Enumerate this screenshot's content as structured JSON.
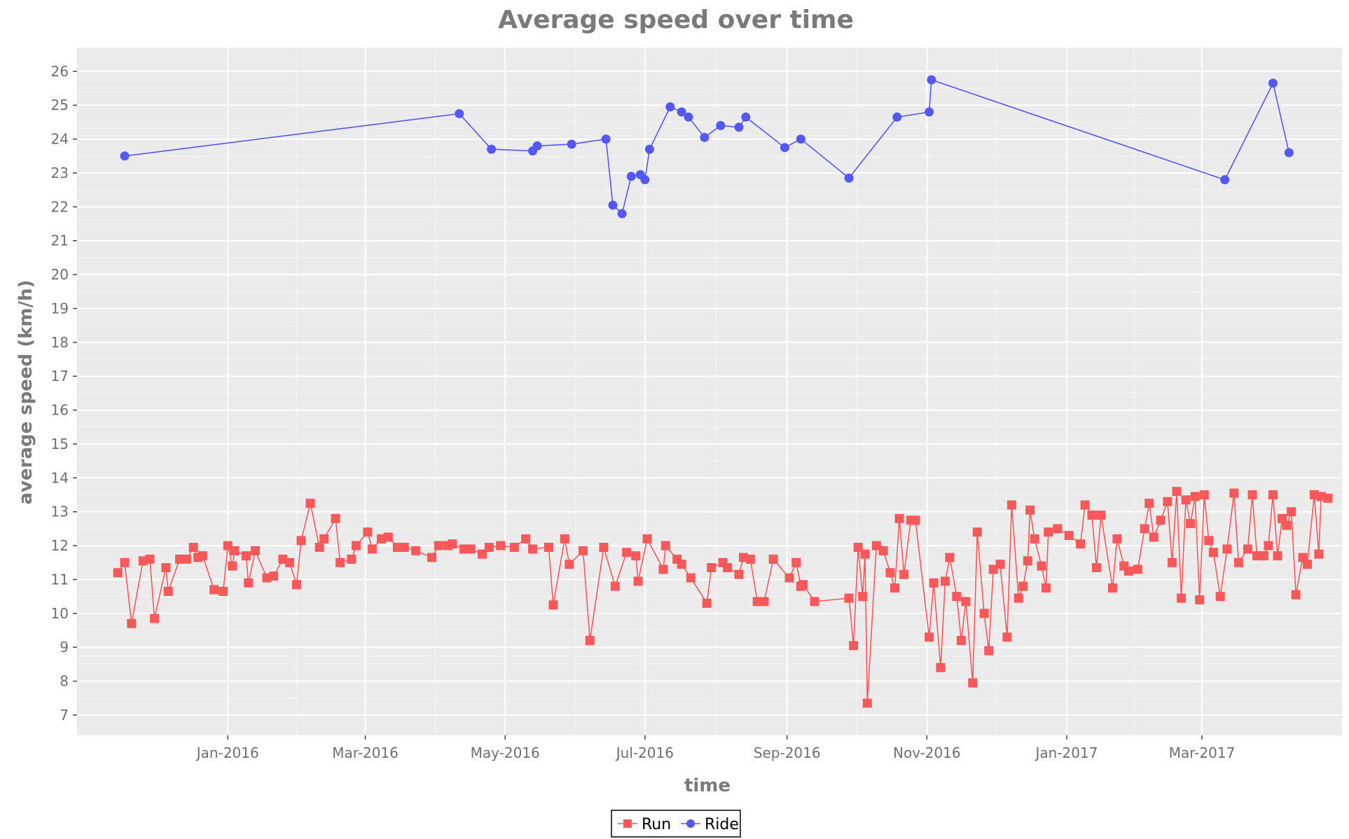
{
  "chart_data": {
    "type": "line",
    "title": "Average speed over time",
    "xlabel": "time",
    "ylabel": "average speed (km/h)",
    "x_axis": {
      "type": "date",
      "range": [
        "2015-11-06",
        "2017-04-25"
      ],
      "ticks": [
        "2016-01-01",
        "2016-03-01",
        "2016-05-01",
        "2016-07-01",
        "2016-09-01",
        "2016-11-01",
        "2017-01-01",
        "2017-03-01"
      ],
      "tick_labels": [
        "Jan-2016",
        "Mar-2016",
        "May-2016",
        "Jul-2016",
        "Sep-2016",
        "Nov-2016",
        "Jan-2017",
        "Mar-2017"
      ]
    },
    "y_axis": {
      "range": [
        6.4,
        26.7
      ],
      "ticks": [
        7,
        8,
        9,
        10,
        11,
        12,
        13,
        14,
        15,
        16,
        17,
        18,
        19,
        20,
        21,
        22,
        23,
        24,
        25,
        26
      ],
      "tick_labels": [
        "7",
        "8",
        "9",
        "10",
        "11",
        "12",
        "13",
        "14",
        "15",
        "16",
        "17",
        "18",
        "19",
        "20",
        "21",
        "22",
        "23",
        "24",
        "25",
        "26"
      ]
    },
    "grid": true,
    "legend_position": "bottom-center",
    "series": [
      {
        "name": "Run",
        "color": "#f8585a",
        "marker": "square",
        "points": [
          [
            "2015-11-14",
            11.2
          ],
          [
            "2015-11-17",
            11.5
          ],
          [
            "2015-11-20",
            9.7
          ],
          [
            "2015-11-25",
            11.55
          ],
          [
            "2015-11-28",
            11.6
          ],
          [
            "2015-11-30",
            9.85
          ],
          [
            "2015-12-05",
            11.35
          ],
          [
            "2015-12-06",
            10.65
          ],
          [
            "2015-12-11",
            11.6
          ],
          [
            "2015-12-14",
            11.6
          ],
          [
            "2015-12-17",
            11.95
          ],
          [
            "2015-12-19",
            11.65
          ],
          [
            "2015-12-21",
            11.7
          ],
          [
            "2015-12-26",
            10.7
          ],
          [
            "2015-12-30",
            10.65
          ],
          [
            "2016-01-01",
            12.0
          ],
          [
            "2016-01-03",
            11.4
          ],
          [
            "2016-01-04",
            11.85
          ],
          [
            "2016-01-09",
            11.7
          ],
          [
            "2016-01-10",
            10.9
          ],
          [
            "2016-01-13",
            11.85
          ],
          [
            "2016-01-18",
            11.05
          ],
          [
            "2016-01-21",
            11.1
          ],
          [
            "2016-01-25",
            11.6
          ],
          [
            "2016-01-28",
            11.5
          ],
          [
            "2016-01-31",
            10.85
          ],
          [
            "2016-02-02",
            12.15
          ],
          [
            "2016-02-06",
            13.25
          ],
          [
            "2016-02-10",
            11.95
          ],
          [
            "2016-02-12",
            12.2
          ],
          [
            "2016-02-17",
            12.8
          ],
          [
            "2016-02-19",
            11.5
          ],
          [
            "2016-02-24",
            11.6
          ],
          [
            "2016-02-26",
            12.0
          ],
          [
            "2016-03-02",
            12.4
          ],
          [
            "2016-03-04",
            11.9
          ],
          [
            "2016-03-08",
            12.2
          ],
          [
            "2016-03-11",
            12.25
          ],
          [
            "2016-03-15",
            11.95
          ],
          [
            "2016-03-18",
            11.95
          ],
          [
            "2016-03-23",
            11.85
          ],
          [
            "2016-03-30",
            11.65
          ],
          [
            "2016-04-02",
            12.0
          ],
          [
            "2016-04-06",
            12.0
          ],
          [
            "2016-04-08",
            12.05
          ],
          [
            "2016-04-13",
            11.9
          ],
          [
            "2016-04-16",
            11.9
          ],
          [
            "2016-04-21",
            11.75
          ],
          [
            "2016-04-24",
            11.95
          ],
          [
            "2016-04-29",
            12.0
          ],
          [
            "2016-05-05",
            11.95
          ],
          [
            "2016-05-10",
            12.2
          ],
          [
            "2016-05-13",
            11.9
          ],
          [
            "2016-05-20",
            11.95
          ],
          [
            "2016-05-22",
            10.25
          ],
          [
            "2016-05-27",
            12.2
          ],
          [
            "2016-05-29",
            11.45
          ],
          [
            "2016-06-04",
            11.85
          ],
          [
            "2016-06-07",
            9.2
          ],
          [
            "2016-06-13",
            11.95
          ],
          [
            "2016-06-18",
            10.8
          ],
          [
            "2016-06-23",
            11.8
          ],
          [
            "2016-06-27",
            11.7
          ],
          [
            "2016-06-28",
            10.95
          ],
          [
            "2016-07-02",
            12.2
          ],
          [
            "2016-07-09",
            11.3
          ],
          [
            "2016-07-10",
            12.0
          ],
          [
            "2016-07-15",
            11.6
          ],
          [
            "2016-07-17",
            11.45
          ],
          [
            "2016-07-21",
            11.05
          ],
          [
            "2016-07-28",
            10.3
          ],
          [
            "2016-07-30",
            11.35
          ],
          [
            "2016-08-04",
            11.5
          ],
          [
            "2016-08-06",
            11.35
          ],
          [
            "2016-08-11",
            11.15
          ],
          [
            "2016-08-13",
            11.65
          ],
          [
            "2016-08-16",
            11.6
          ],
          [
            "2016-08-19",
            10.35
          ],
          [
            "2016-08-22",
            10.35
          ],
          [
            "2016-08-26",
            11.6
          ],
          [
            "2016-09-02",
            11.05
          ],
          [
            "2016-09-05",
            11.5
          ],
          [
            "2016-09-07",
            10.8
          ],
          [
            "2016-09-08",
            10.85
          ],
          [
            "2016-09-13",
            10.35
          ],
          [
            "2016-09-28",
            10.45
          ],
          [
            "2016-09-30",
            9.05
          ],
          [
            "2016-10-02",
            11.95
          ],
          [
            "2016-10-04",
            10.5
          ],
          [
            "2016-10-05",
            11.75
          ],
          [
            "2016-10-06",
            7.35
          ],
          [
            "2016-10-10",
            12.0
          ],
          [
            "2016-10-13",
            11.85
          ],
          [
            "2016-10-16",
            11.2
          ],
          [
            "2016-10-18",
            10.75
          ],
          [
            "2016-10-20",
            12.8
          ],
          [
            "2016-10-22",
            11.15
          ],
          [
            "2016-10-25",
            12.75
          ],
          [
            "2016-10-27",
            12.75
          ],
          [
            "2016-11-02",
            9.3
          ],
          [
            "2016-11-04",
            10.9
          ],
          [
            "2016-11-07",
            8.4
          ],
          [
            "2016-11-09",
            10.95
          ],
          [
            "2016-11-11",
            11.65
          ],
          [
            "2016-11-14",
            10.5
          ],
          [
            "2016-11-16",
            9.2
          ],
          [
            "2016-11-18",
            10.35
          ],
          [
            "2016-11-21",
            7.95
          ],
          [
            "2016-11-23",
            12.4
          ],
          [
            "2016-11-26",
            10.0
          ],
          [
            "2016-11-28",
            8.9
          ],
          [
            "2016-11-30",
            11.3
          ],
          [
            "2016-12-03",
            11.45
          ],
          [
            "2016-12-06",
            9.3
          ],
          [
            "2016-12-08",
            13.2
          ],
          [
            "2016-12-11",
            10.45
          ],
          [
            "2016-12-13",
            10.8
          ],
          [
            "2016-12-15",
            11.55
          ],
          [
            "2016-12-16",
            13.05
          ],
          [
            "2016-12-18",
            12.2
          ],
          [
            "2016-12-21",
            11.4
          ],
          [
            "2016-12-23",
            10.75
          ],
          [
            "2016-12-24",
            12.4
          ],
          [
            "2016-12-28",
            12.5
          ],
          [
            "2017-01-02",
            12.3
          ],
          [
            "2017-01-07",
            12.05
          ],
          [
            "2017-01-09",
            13.2
          ],
          [
            "2017-01-12",
            12.9
          ],
          [
            "2017-01-14",
            11.35
          ],
          [
            "2017-01-16",
            12.9
          ],
          [
            "2017-01-21",
            10.75
          ],
          [
            "2017-01-23",
            12.2
          ],
          [
            "2017-01-26",
            11.4
          ],
          [
            "2017-01-28",
            11.25
          ],
          [
            "2017-02-01",
            11.3
          ],
          [
            "2017-02-04",
            12.5
          ],
          [
            "2017-02-06",
            13.25
          ],
          [
            "2017-02-08",
            12.25
          ],
          [
            "2017-02-11",
            12.75
          ],
          [
            "2017-02-14",
            13.3
          ],
          [
            "2017-02-16",
            11.5
          ],
          [
            "2017-02-18",
            13.6
          ],
          [
            "2017-02-20",
            10.45
          ],
          [
            "2017-02-22",
            13.35
          ],
          [
            "2017-02-24",
            12.65
          ],
          [
            "2017-02-26",
            13.45
          ],
          [
            "2017-02-28",
            10.4
          ],
          [
            "2017-03-02",
            13.5
          ],
          [
            "2017-03-04",
            12.15
          ],
          [
            "2017-03-06",
            11.8
          ],
          [
            "2017-03-09",
            10.5
          ],
          [
            "2017-03-12",
            11.9
          ],
          [
            "2017-03-15",
            13.55
          ],
          [
            "2017-03-17",
            11.5
          ],
          [
            "2017-03-21",
            11.9
          ],
          [
            "2017-03-23",
            13.5
          ],
          [
            "2017-03-25",
            11.7
          ],
          [
            "2017-03-28",
            11.7
          ],
          [
            "2017-03-30",
            12.0
          ],
          [
            "2017-04-01",
            13.5
          ],
          [
            "2017-04-03",
            11.7
          ],
          [
            "2017-04-05",
            12.8
          ],
          [
            "2017-04-07",
            12.6
          ],
          [
            "2017-04-09",
            13.0
          ],
          [
            "2017-04-11",
            10.55
          ],
          [
            "2017-04-14",
            11.65
          ],
          [
            "2017-04-16",
            11.45
          ],
          [
            "2017-04-19",
            13.5
          ],
          [
            "2017-04-21",
            11.75
          ],
          [
            "2017-04-22",
            13.45
          ],
          [
            "2017-04-25",
            13.4
          ]
        ]
      },
      {
        "name": "Ride",
        "color": "#5458fc",
        "marker": "circle",
        "points": [
          [
            "2015-11-17",
            23.5
          ],
          [
            "2016-04-11",
            24.75
          ],
          [
            "2016-04-25",
            23.7
          ],
          [
            "2016-05-13",
            23.65
          ],
          [
            "2016-05-15",
            23.8
          ],
          [
            "2016-05-30",
            23.85
          ],
          [
            "2016-06-14",
            24.0
          ],
          [
            "2016-06-17",
            22.05
          ],
          [
            "2016-06-21",
            21.8
          ],
          [
            "2016-06-25",
            22.9
          ],
          [
            "2016-06-29",
            22.95
          ],
          [
            "2016-07-01",
            22.8
          ],
          [
            "2016-07-03",
            23.7
          ],
          [
            "2016-07-12",
            24.95
          ],
          [
            "2016-07-17",
            24.8
          ],
          [
            "2016-07-20",
            24.65
          ],
          [
            "2016-07-27",
            24.05
          ],
          [
            "2016-08-03",
            24.4
          ],
          [
            "2016-08-11",
            24.35
          ],
          [
            "2016-08-14",
            24.65
          ],
          [
            "2016-08-31",
            23.75
          ],
          [
            "2016-09-07",
            24.0
          ],
          [
            "2016-09-28",
            22.85
          ],
          [
            "2016-10-19",
            24.65
          ],
          [
            "2016-11-02",
            24.8
          ],
          [
            "2016-11-03",
            25.75
          ],
          [
            "2017-03-11",
            22.8
          ],
          [
            "2017-04-01",
            25.65
          ],
          [
            "2017-04-08",
            23.6
          ]
        ]
      }
    ]
  }
}
